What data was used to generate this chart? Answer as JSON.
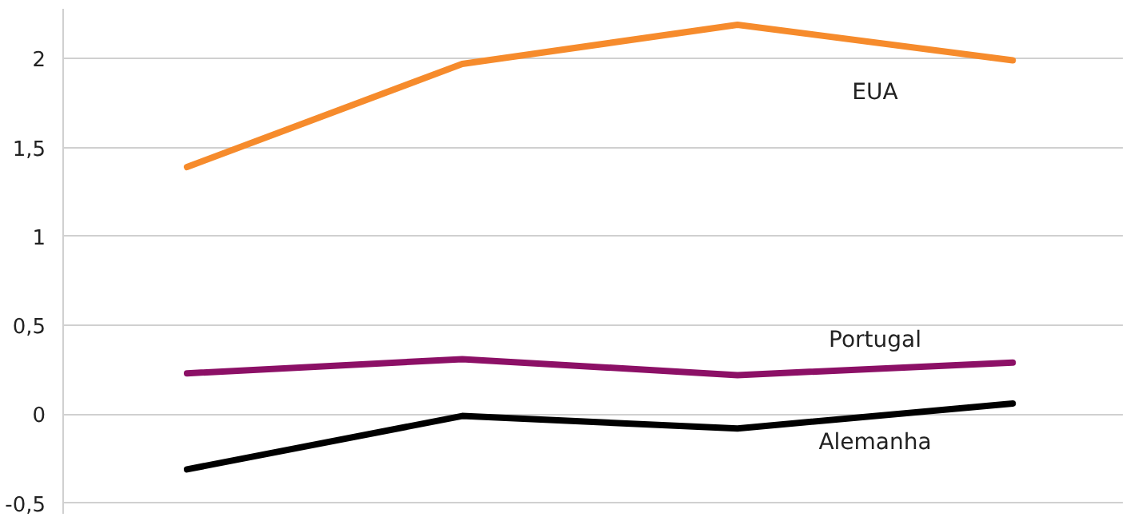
{
  "chart_data": {
    "type": "line",
    "categories": [
      null,
      null,
      null,
      null
    ],
    "series": [
      {
        "name": "EUA",
        "color": "#f68b2c",
        "values": [
          1.39,
          1.97,
          2.19,
          1.99
        ]
      },
      {
        "name": "Portugal",
        "color": "#8c1066",
        "values": [
          0.23,
          0.31,
          0.22,
          0.29
        ]
      },
      {
        "name": "Alemanha",
        "color": "#000000",
        "values": [
          -0.31,
          -0.01,
          -0.08,
          0.06
        ]
      }
    ],
    "ylim": [
      -0.56,
      2.28
    ],
    "yticks": [
      {
        "value": -0.5,
        "label": "-0,5"
      },
      {
        "value": 0,
        "label": "0"
      },
      {
        "value": 0.5,
        "label": "0,5"
      },
      {
        "value": 1,
        "label": "1"
      },
      {
        "value": 1.5,
        "label": "1,5"
      },
      {
        "value": 2,
        "label": "2"
      }
    ],
    "grid": "y",
    "legend": false,
    "marker": "none",
    "line_style": "solid"
  }
}
